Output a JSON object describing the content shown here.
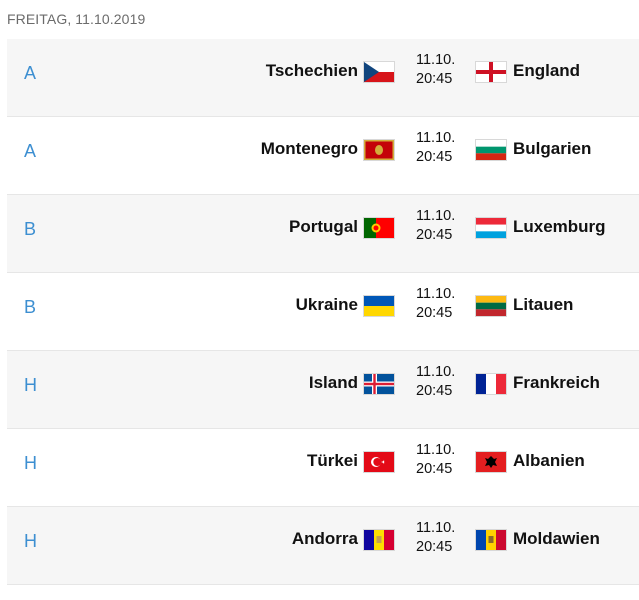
{
  "header": {
    "date": "FREITAG, 11.10.2019"
  },
  "matches": [
    {
      "group": "A",
      "home": "Tschechien",
      "home_flag": "czech-flag-icon",
      "date": "11.10.",
      "time": "20:45",
      "away": "England",
      "away_flag": "england-flag-icon"
    },
    {
      "group": "A",
      "home": "Montenegro",
      "home_flag": "montenegro-flag-icon",
      "date": "11.10.",
      "time": "20:45",
      "away": "Bulgarien",
      "away_flag": "bulgaria-flag-icon"
    },
    {
      "group": "B",
      "home": "Portugal",
      "home_flag": "portugal-flag-icon",
      "date": "11.10.",
      "time": "20:45",
      "away": "Luxemburg",
      "away_flag": "luxembourg-flag-icon"
    },
    {
      "group": "B",
      "home": "Ukraine",
      "home_flag": "ukraine-flag-icon",
      "date": "11.10.",
      "time": "20:45",
      "away": "Litauen",
      "away_flag": "lithuania-flag-icon"
    },
    {
      "group": "H",
      "home": "Island",
      "home_flag": "iceland-flag-icon",
      "date": "11.10.",
      "time": "20:45",
      "away": "Frankreich",
      "away_flag": "france-flag-icon"
    },
    {
      "group": "H",
      "home": "Türkei",
      "home_flag": "turkey-flag-icon",
      "date": "11.10.",
      "time": "20:45",
      "away": "Albanien",
      "away_flag": "albania-flag-icon"
    },
    {
      "group": "H",
      "home": "Andorra",
      "home_flag": "andorra-flag-icon",
      "date": "11.10.",
      "time": "20:45",
      "away": "Moldawien",
      "away_flag": "moldova-flag-icon"
    }
  ],
  "colors": {
    "group_label": "#3d8fd1",
    "row_shade": "#f6f6f6",
    "header_text": "#6b6b6b"
  }
}
